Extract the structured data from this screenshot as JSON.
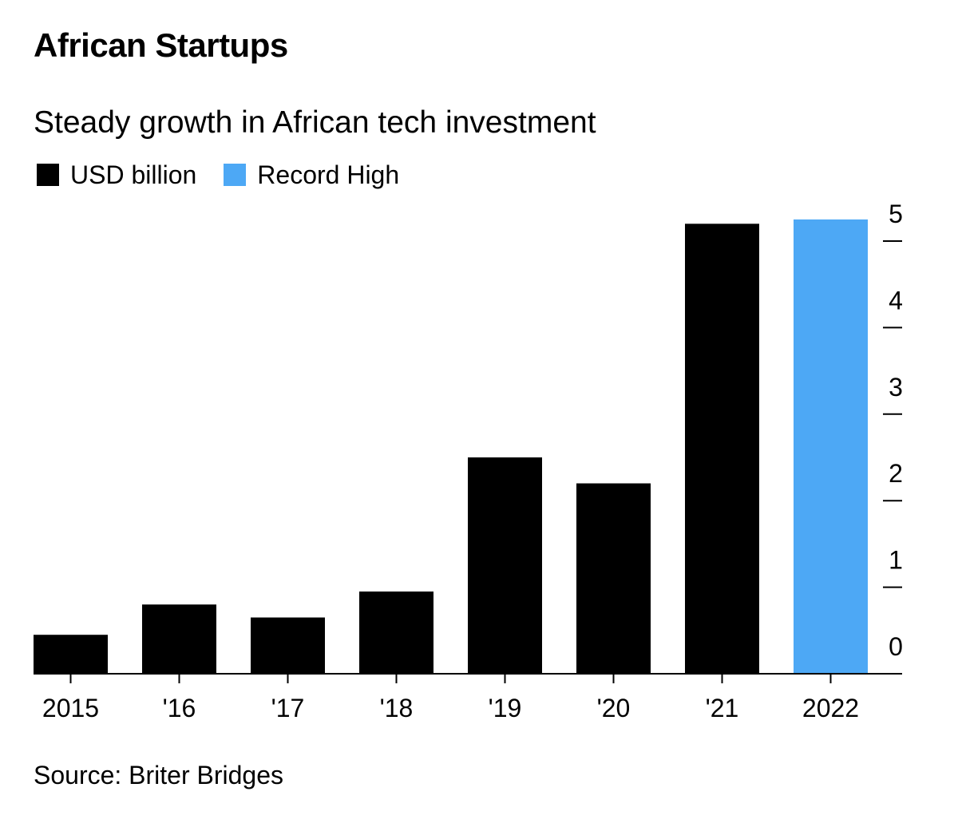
{
  "header": {
    "title": "African Startups",
    "subtitle": "Steady growth in African tech investment"
  },
  "legend": {
    "items": [
      {
        "label": "USD billion",
        "color": "#000000"
      },
      {
        "label": "Record High",
        "color": "#4DA8F5"
      }
    ]
  },
  "footer": {
    "source": "Source: Briter Bridges"
  },
  "chart_data": {
    "type": "bar",
    "title": "African Startups",
    "subtitle": "Steady growth in African tech investment",
    "xlabel": "",
    "ylabel": "USD billion",
    "categories": [
      "2015",
      "'16",
      "'17",
      "'18",
      "'19",
      "'20",
      "'21",
      "2022"
    ],
    "values": [
      0.45,
      0.8,
      0.65,
      0.95,
      2.5,
      2.2,
      5.2,
      5.25
    ],
    "highlight_index": 7,
    "bar_color": "#000000",
    "highlight_color": "#4DA8F5",
    "ylim": [
      0,
      5.3
    ],
    "yticks": [
      0,
      1,
      2,
      3,
      4,
      5
    ],
    "y_axis_side": "right",
    "grid": false
  }
}
